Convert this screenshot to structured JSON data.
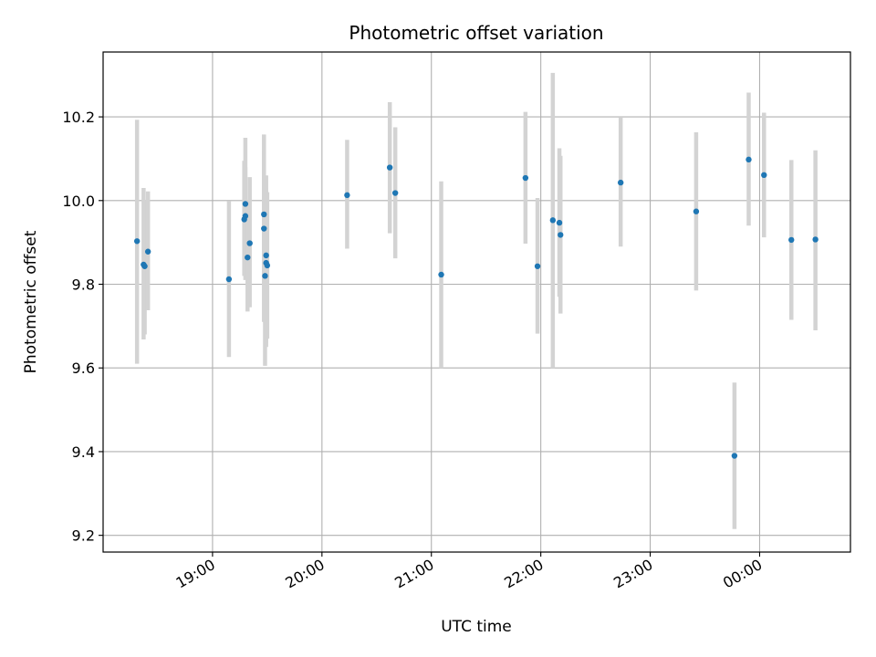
{
  "chart_data": {
    "type": "scatter",
    "title": "Photometric offset variation",
    "xlabel": "UTC time",
    "ylabel": "Photometric offset",
    "x_unit": "UTC time of day (hours, continuing past midnight)",
    "xlim": [
      18.0,
      24.83
    ],
    "ylim": [
      9.16,
      10.355
    ],
    "x_ticks": [
      {
        "value": 19,
        "label": "19:00"
      },
      {
        "value": 20,
        "label": "20:00"
      },
      {
        "value": 21,
        "label": "21:00"
      },
      {
        "value": 22,
        "label": "22:00"
      },
      {
        "value": 23,
        "label": "23:00"
      },
      {
        "value": 24,
        "label": "00:00"
      }
    ],
    "y_ticks": [
      {
        "value": 9.2,
        "label": "9.2"
      },
      {
        "value": 9.4,
        "label": "9.4"
      },
      {
        "value": 9.6,
        "label": "9.6"
      },
      {
        "value": 9.8,
        "label": "9.8"
      },
      {
        "value": 10.0,
        "label": "10.0"
      },
      {
        "value": 10.2,
        "label": "10.2"
      }
    ],
    "grid": true,
    "colors": {
      "point": "#1f77b4",
      "errorbar": "#d3d3d3",
      "grid": "#b0b0b0"
    },
    "points": [
      {
        "x": 18.31,
        "y": 9.903,
        "err_low": 9.61,
        "err_high": 10.193
      },
      {
        "x": 18.37,
        "y": 9.847,
        "err_low": 9.668,
        "err_high": 10.03
      },
      {
        "x": 18.38,
        "y": 9.843,
        "err_low": 9.68,
        "err_high": 10.0
      },
      {
        "x": 18.41,
        "y": 9.878,
        "err_low": 9.738,
        "err_high": 10.022
      },
      {
        "x": 19.15,
        "y": 9.812,
        "err_low": 9.626,
        "err_high": 9.999
      },
      {
        "x": 19.29,
        "y": 9.955,
        "err_low": 9.82,
        "err_high": 10.095
      },
      {
        "x": 19.3,
        "y": 9.992,
        "err_low": 9.833,
        "err_high": 10.15
      },
      {
        "x": 19.3,
        "y": 9.963,
        "err_low": 9.81,
        "err_high": 10.08
      },
      {
        "x": 19.32,
        "y": 9.864,
        "err_low": 9.735,
        "err_high": 10.0
      },
      {
        "x": 19.34,
        "y": 9.898,
        "err_low": 9.745,
        "err_high": 10.056
      },
      {
        "x": 19.47,
        "y": 9.967,
        "err_low": 9.81,
        "err_high": 10.158
      },
      {
        "x": 19.47,
        "y": 9.933,
        "err_low": 9.71,
        "err_high": 10.12
      },
      {
        "x": 19.48,
        "y": 9.82,
        "err_low": 9.605,
        "err_high": 10.04
      },
      {
        "x": 19.49,
        "y": 9.869,
        "err_low": 9.65,
        "err_high": 10.06
      },
      {
        "x": 19.49,
        "y": 9.851,
        "err_low": 9.66,
        "err_high": 10.03
      },
      {
        "x": 19.5,
        "y": 9.845,
        "err_low": 9.67,
        "err_high": 10.02
      },
      {
        "x": 20.23,
        "y": 10.013,
        "err_low": 9.885,
        "err_high": 10.145
      },
      {
        "x": 20.62,
        "y": 10.079,
        "err_low": 9.922,
        "err_high": 10.235
      },
      {
        "x": 20.67,
        "y": 10.018,
        "err_low": 9.862,
        "err_high": 10.175
      },
      {
        "x": 21.09,
        "y": 9.823,
        "err_low": 9.6,
        "err_high": 10.046
      },
      {
        "x": 21.86,
        "y": 10.054,
        "err_low": 9.897,
        "err_high": 10.212
      },
      {
        "x": 21.97,
        "y": 9.843,
        "err_low": 9.682,
        "err_high": 10.006
      },
      {
        "x": 22.11,
        "y": 9.953,
        "err_low": 9.6,
        "err_high": 10.305
      },
      {
        "x": 22.17,
        "y": 9.947,
        "err_low": 9.77,
        "err_high": 10.125
      },
      {
        "x": 22.18,
        "y": 9.918,
        "err_low": 9.73,
        "err_high": 10.107
      },
      {
        "x": 22.73,
        "y": 10.043,
        "err_low": 9.89,
        "err_high": 10.2
      },
      {
        "x": 23.42,
        "y": 9.974,
        "err_low": 9.785,
        "err_high": 10.163
      },
      {
        "x": 23.77,
        "y": 9.39,
        "err_low": 9.215,
        "err_high": 9.565
      },
      {
        "x": 23.9,
        "y": 10.098,
        "err_low": 9.94,
        "err_high": 10.258
      },
      {
        "x": 24.04,
        "y": 10.061,
        "err_low": 9.912,
        "err_high": 10.21
      },
      {
        "x": 24.29,
        "y": 9.906,
        "err_low": 9.715,
        "err_high": 10.097
      },
      {
        "x": 24.51,
        "y": 9.907,
        "err_low": 9.69,
        "err_high": 10.12
      }
    ]
  }
}
